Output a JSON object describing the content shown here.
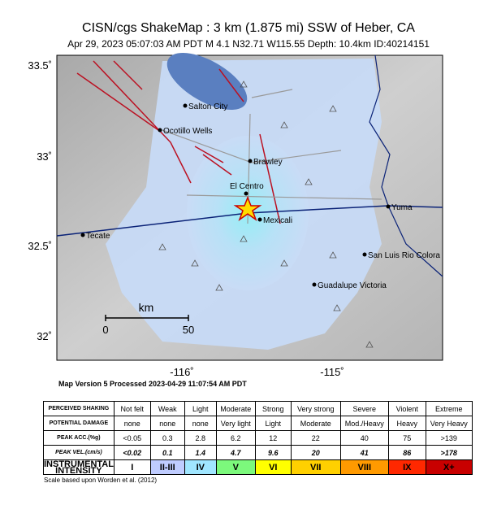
{
  "header": {
    "title": "CISN/cgs ShakeMap : 3 km (1.875 mi) SSW of Heber, CA",
    "subtitle": "Apr 29, 2023 05:07:03 AM PDT   M 4.1   N32.71 W115.55   Depth: 10.4km   ID:40214151"
  },
  "map": {
    "lat_labels": [
      "33.5˚",
      "33˚",
      "32.5˚",
      "32˚"
    ],
    "lon_labels": [
      "-116˚",
      "-115˚"
    ],
    "places": [
      "Salton City",
      "Ocotillo Wells",
      "Brawley",
      "El Centro",
      "Mexicali",
      "Tecate",
      "Yuma",
      "San Luis Rio Colora",
      "Guadalupe Victoria"
    ],
    "scale": {
      "unit": "km",
      "labels": [
        "0",
        "50"
      ]
    }
  },
  "version": "Map Version 5 Processed 2023-04-29 11:07:54 AM PDT",
  "table": {
    "rows": [
      {
        "label": "PERCEIVED SHAKING",
        "cells": [
          "Not felt",
          "Weak",
          "Light",
          "Moderate",
          "Strong",
          "Very strong",
          "Severe",
          "Violent",
          "Extreme"
        ]
      },
      {
        "label": "POTENTIAL DAMAGE",
        "cells": [
          "none",
          "none",
          "none",
          "Very light",
          "Light",
          "Moderate",
          "Mod./Heavy",
          "Heavy",
          "Very Heavy"
        ]
      },
      {
        "label": "PEAK ACC.(%g)",
        "cells": [
          "<0.05",
          "0.3",
          "2.8",
          "6.2",
          "12",
          "22",
          "40",
          "75",
          ">139"
        ]
      },
      {
        "label": "PEAK VEL.(cm/s)",
        "cells": [
          "<0.02",
          "0.1",
          "1.4",
          "4.7",
          "9.6",
          "20",
          "41",
          "86",
          ">178"
        ]
      },
      {
        "label": "INSTRUMENTAL INTENSITY",
        "cells": [
          "I",
          "II-III",
          "IV",
          "V",
          "VI",
          "VII",
          "VIII",
          "IX",
          "X+"
        ]
      }
    ]
  },
  "footnote": "Scale based upon Worden et al. (2012)"
}
